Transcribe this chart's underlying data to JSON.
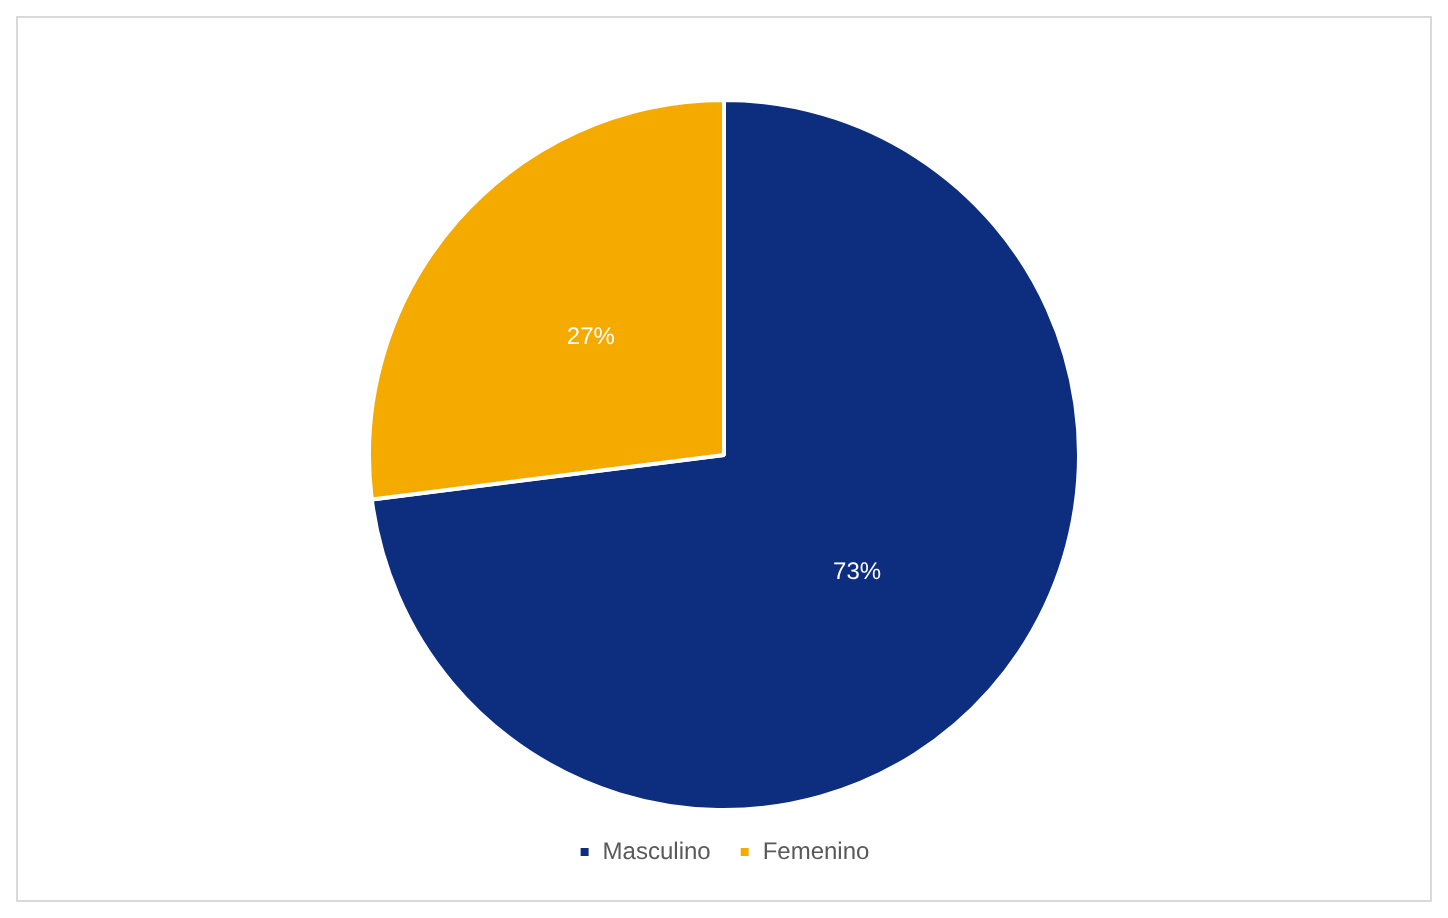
{
  "chart_data": {
    "type": "pie",
    "categories": [
      "Masculino",
      "Femenino"
    ],
    "values": [
      73,
      27
    ],
    "colors": [
      "#0d2d7e",
      "#f5aa00"
    ],
    "value_labels": [
      "73%",
      "27%"
    ],
    "legend": "bottom"
  }
}
